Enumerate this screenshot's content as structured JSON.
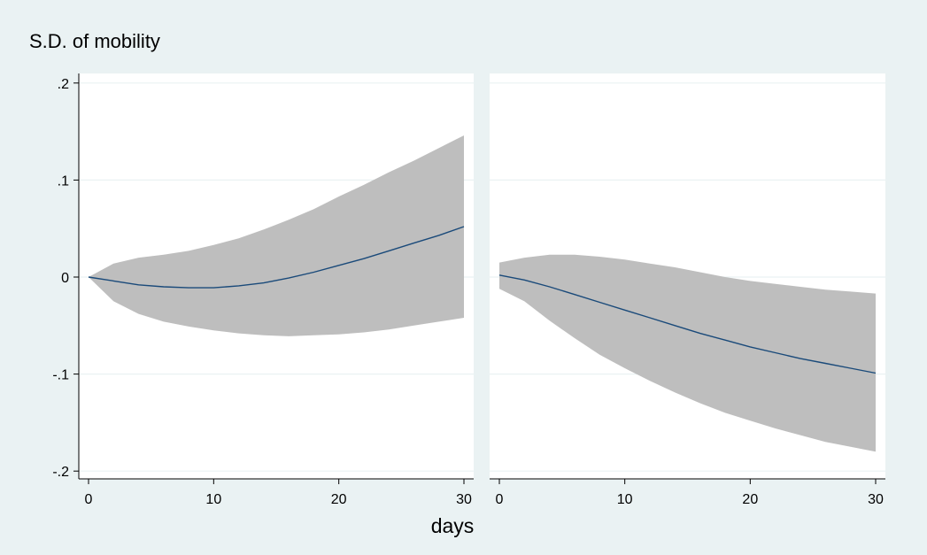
{
  "title": "S.D. of mobility",
  "xlabel": "days",
  "colors": {
    "background": "#eaf2f3",
    "plot_region": "#ffffff",
    "band": "#bebebe",
    "line": "#1a4a7a",
    "gridline": "#eaf2f3"
  },
  "chart_data": {
    "type": "line",
    "title": "S.D. of mobility",
    "xlabel": "days",
    "ylabel": "",
    "xlim": [
      0,
      30
    ],
    "ylim": [
      -0.2,
      0.2
    ],
    "grid": true,
    "legend": "none",
    "shared_y_axis": true,
    "x_ticks": [
      0,
      10,
      20,
      30
    ],
    "y_ticks": [
      0.2,
      0.1,
      0,
      -0.1,
      -0.2
    ],
    "y_tick_labels": [
      ".2",
      ".1",
      "0",
      "-.1",
      "-.2"
    ],
    "panels": [
      {
        "x": [
          0,
          2,
          4,
          6,
          8,
          10,
          12,
          14,
          16,
          18,
          20,
          22,
          24,
          26,
          28,
          30
        ],
        "series": [
          {
            "role": "estimate",
            "values": [
              0,
              -0.004,
              -0.008,
              -0.01,
              -0.011,
              -0.011,
              -0.009,
              -0.006,
              -0.001,
              0.005,
              0.012,
              0.019,
              0.027,
              0.035,
              0.043,
              0.052
            ]
          },
          {
            "role": "upper",
            "values": [
              0,
              0.014,
              0.02,
              0.023,
              0.027,
              0.033,
              0.04,
              0.049,
              0.059,
              0.07,
              0.083,
              0.095,
              0.108,
              0.12,
              0.133,
              0.146
            ]
          },
          {
            "role": "lower",
            "values": [
              0,
              -0.025,
              -0.038,
              -0.046,
              -0.051,
              -0.055,
              -0.058,
              -0.06,
              -0.061,
              -0.06,
              -0.059,
              -0.057,
              -0.054,
              -0.05,
              -0.046,
              -0.042
            ]
          }
        ]
      },
      {
        "x": [
          0,
          2,
          4,
          6,
          8,
          10,
          12,
          14,
          16,
          18,
          20,
          22,
          24,
          26,
          28,
          30
        ],
        "series": [
          {
            "role": "estimate",
            "values": [
              0.002,
              -0.003,
              -0.01,
              -0.018,
              -0.026,
              -0.034,
              -0.042,
              -0.05,
              -0.058,
              -0.065,
              -0.072,
              -0.078,
              -0.084,
              -0.089,
              -0.094,
              -0.099
            ]
          },
          {
            "role": "upper",
            "values": [
              0.015,
              0.02,
              0.023,
              0.023,
              0.021,
              0.018,
              0.014,
              0.01,
              0.005,
              0,
              -0.004,
              -0.007,
              -0.01,
              -0.013,
              -0.015,
              -0.017
            ]
          },
          {
            "role": "lower",
            "values": [
              -0.012,
              -0.025,
              -0.045,
              -0.063,
              -0.08,
              -0.094,
              -0.107,
              -0.119,
              -0.13,
              -0.14,
              -0.148,
              -0.156,
              -0.163,
              -0.17,
              -0.175,
              -0.18
            ]
          }
        ]
      }
    ]
  }
}
